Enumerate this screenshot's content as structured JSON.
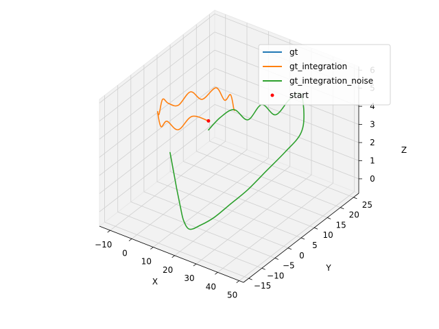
{
  "chart_data": {
    "type": "line3d",
    "xlabel": "X",
    "ylabel": "Y",
    "zlabel": "Z",
    "xlim": [
      -15,
      52
    ],
    "ylim": [
      -17,
      27
    ],
    "zlim": [
      -0.8,
      6.2
    ],
    "xticks": [
      -10,
      0,
      10,
      20,
      30,
      40,
      50
    ],
    "yticks": [
      -15,
      -10,
      -5,
      0,
      5,
      10,
      15,
      20,
      25
    ],
    "zticks": [
      0,
      1,
      2,
      3,
      4,
      5,
      6
    ],
    "xtick_labels": [
      "−10",
      "0",
      "10",
      "20",
      "30",
      "40",
      "50"
    ],
    "ytick_labels": [
      "−15",
      "−10",
      "−5",
      "0",
      "5",
      "10",
      "15",
      "20",
      "25"
    ],
    "ztick_labels": [
      "0",
      "1",
      "2",
      "3",
      "4",
      "5",
      "6"
    ],
    "grid": true,
    "legend_position": "top-right",
    "series": [
      {
        "name": "gt",
        "color": "#1f77b4",
        "kind": "line",
        "description_of_path": "same as gt_integration (hidden underneath)",
        "x": [],
        "y": [],
        "z": []
      },
      {
        "name": "gt_integration",
        "color": "#ff7f0e",
        "kind": "line",
        "x": [
          15,
          11,
          7,
          3,
          -1,
          -5,
          -8,
          -10,
          -11,
          -10,
          -8,
          -5,
          -1,
          3,
          7,
          11,
          15
        ],
        "y": [
          0,
          -3,
          -5,
          -6,
          -5,
          -3,
          0,
          3,
          6,
          9,
          12,
          14,
          16,
          16,
          15,
          13,
          10
        ],
        "z": [
          4.5,
          4.9,
          4.2,
          4.6,
          4.0,
          4.4,
          3.8,
          4.2,
          3.6,
          3.2,
          3.7,
          3.2,
          3.8,
          3.3,
          3.9,
          3.5,
          4.0
        ]
      },
      {
        "name": "gt_integration_noise",
        "color": "#2ca02c",
        "kind": "line",
        "x": [
          15,
          18,
          22,
          26,
          30,
          34,
          38,
          42,
          46,
          48,
          46,
          42,
          38,
          34,
          30,
          26,
          22,
          18,
          14,
          10,
          6,
          2
        ],
        "y": [
          0,
          2,
          4,
          6,
          8,
          10,
          12,
          13,
          11,
          8,
          4,
          0,
          -4,
          -7,
          -10,
          -12,
          -13,
          -12,
          -10,
          -8,
          -6,
          -4
        ],
        "z": [
          4.0,
          4.6,
          5.0,
          4.4,
          5.2,
          4.6,
          5.4,
          5.8,
          5.0,
          4.4,
          3.8,
          3.0,
          2.2,
          1.6,
          1.0,
          0.6,
          0.3,
          0.5,
          0.9,
          1.4,
          2.0,
          2.6
        ]
      },
      {
        "name": "start",
        "color": "#ff0000",
        "kind": "point",
        "x": [
          15
        ],
        "y": [
          0
        ],
        "z": [
          4.5
        ]
      }
    ]
  }
}
